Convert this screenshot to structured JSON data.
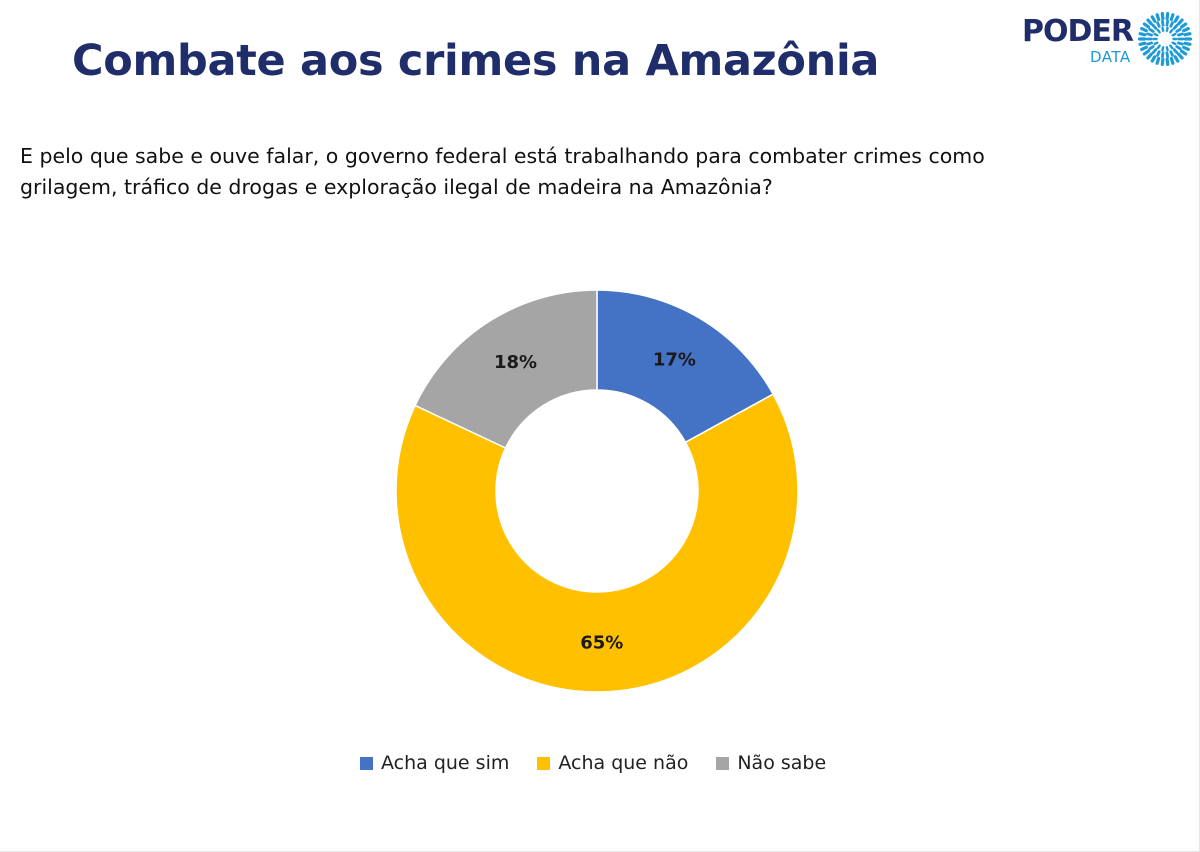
{
  "header": {
    "title": "Combate aos crimes na Amazônia",
    "question": "E pelo que sabe e ouve falar, o governo federal está trabalhando para combater crimes como grilagem, tráfico de drogas e exploração ilegal de madeira na Amazônia?"
  },
  "logo": {
    "word": "PODER",
    "sub": "DATA",
    "icon": "sun-burst-icon",
    "colors": {
      "word": "#1f2d6b",
      "accent": "#1e9ad6"
    }
  },
  "chart_data": {
    "type": "pie",
    "variant": "donut",
    "title": "",
    "categories": [
      "Acha que sim",
      "Acha que não",
      "Não sabe"
    ],
    "values": [
      17,
      65,
      18
    ],
    "labels": [
      "17%",
      "65%",
      "18%"
    ],
    "colors": [
      "#4472c4",
      "#ffc000",
      "#a5a5a5"
    ],
    "start_angle_deg": 0,
    "direction": "clockwise",
    "legend": "bottom"
  }
}
